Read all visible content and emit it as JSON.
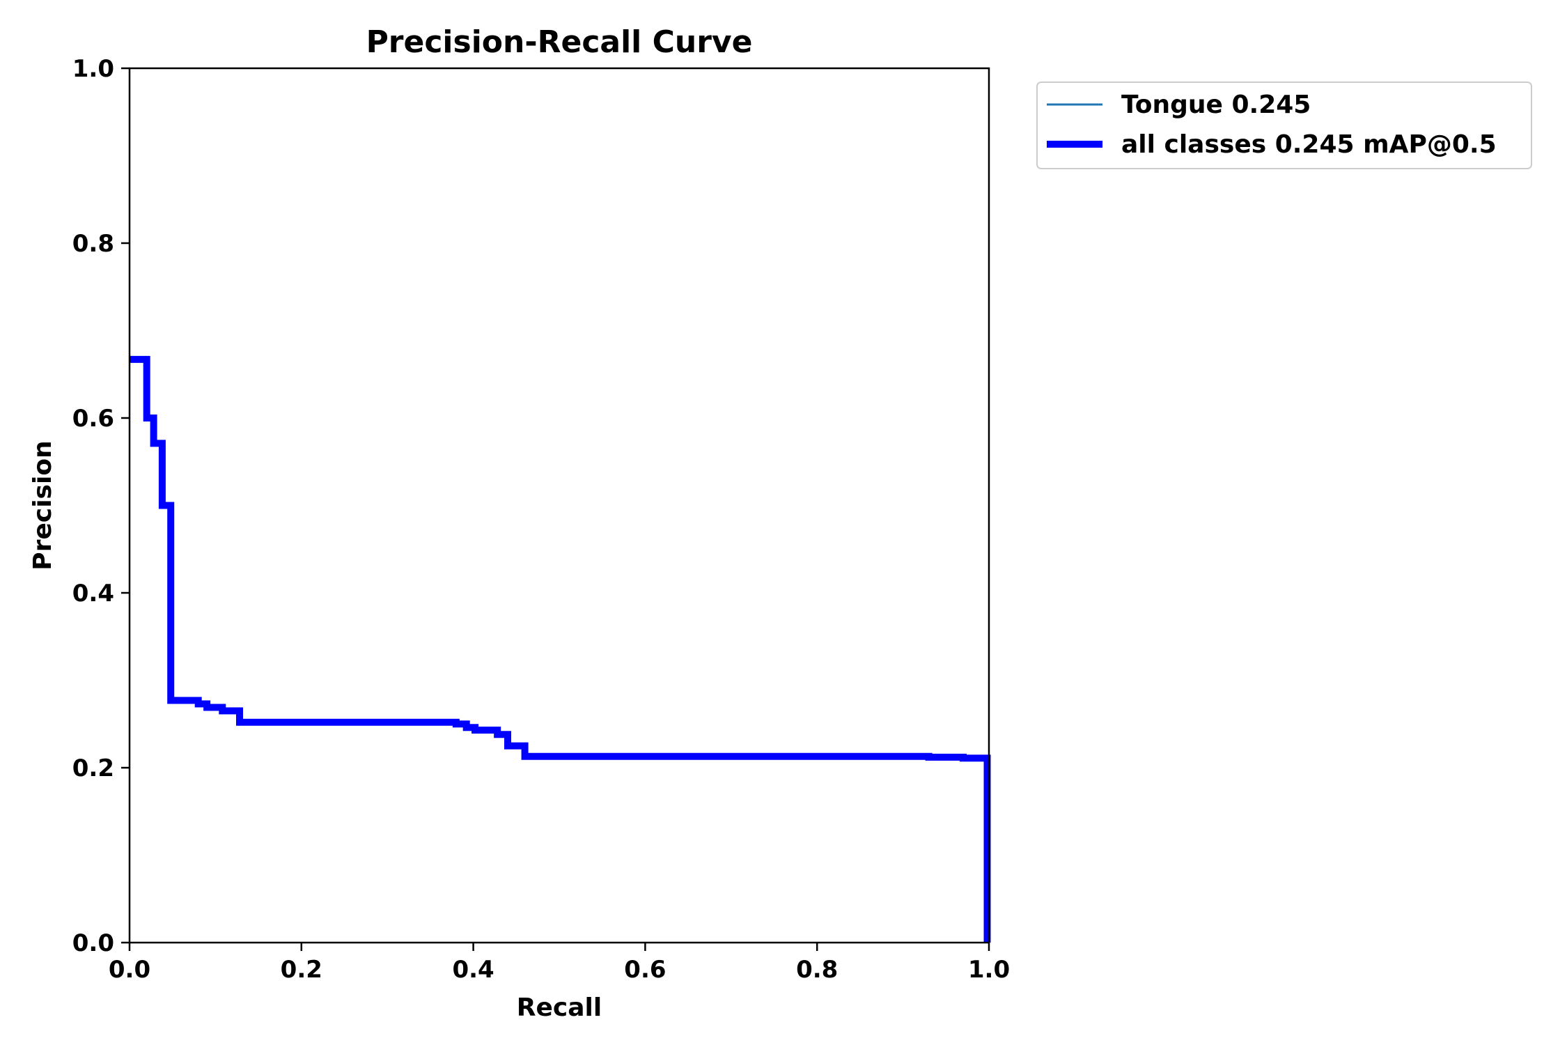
{
  "chart_data": {
    "type": "line",
    "title": "Precision-Recall Curve",
    "xlabel": "Recall",
    "ylabel": "Precision",
    "xlim": [
      0,
      1
    ],
    "ylim": [
      0,
      1
    ],
    "xticks": [
      0,
      0.2,
      0.4,
      0.6,
      0.8,
      1.0
    ],
    "yticks": [
      0,
      0.2,
      0.4,
      0.6,
      0.8,
      1.0
    ],
    "xtick_labels": [
      "0.0",
      "0.2",
      "0.4",
      "0.6",
      "0.8",
      "1.0"
    ],
    "ytick_labels": [
      "0.0",
      "0.2",
      "0.4",
      "0.6",
      "0.8",
      "1.0"
    ],
    "grid": false,
    "legend_position": "outside-top-right",
    "series": [
      {
        "name": "Tongue 0.245",
        "color": "#1f77b4",
        "line": "thin",
        "step": true,
        "x": [
          0.0,
          0.02,
          0.02,
          0.028,
          0.028,
          0.038,
          0.038,
          0.048,
          0.048,
          0.08,
          0.08,
          0.09,
          0.09,
          0.108,
          0.108,
          0.128,
          0.128,
          0.38,
          0.38,
          0.392,
          0.392,
          0.402,
          0.402,
          0.428,
          0.428,
          0.44,
          0.44,
          0.46,
          0.46,
          0.93,
          0.93,
          0.97,
          0.97,
          0.998,
          0.998
        ],
        "y": [
          0.667,
          0.667,
          0.6,
          0.6,
          0.571,
          0.571,
          0.5,
          0.5,
          0.277,
          0.277,
          0.273,
          0.273,
          0.269,
          0.269,
          0.265,
          0.265,
          0.252,
          0.252,
          0.25,
          0.25,
          0.246,
          0.246,
          0.243,
          0.243,
          0.238,
          0.238,
          0.225,
          0.225,
          0.213,
          0.213,
          0.212,
          0.212,
          0.211,
          0.211,
          0.0
        ]
      },
      {
        "name": "all classes 0.245 mAP@0.5",
        "color": "#0000ff",
        "line": "thick",
        "step": true,
        "x": [
          0.0,
          0.02,
          0.02,
          0.028,
          0.028,
          0.038,
          0.038,
          0.048,
          0.048,
          0.08,
          0.08,
          0.09,
          0.09,
          0.108,
          0.108,
          0.128,
          0.128,
          0.38,
          0.38,
          0.392,
          0.392,
          0.402,
          0.402,
          0.428,
          0.428,
          0.44,
          0.44,
          0.46,
          0.46,
          0.93,
          0.93,
          0.97,
          0.97,
          0.998,
          0.998
        ],
        "y": [
          0.667,
          0.667,
          0.6,
          0.6,
          0.571,
          0.571,
          0.5,
          0.5,
          0.277,
          0.277,
          0.273,
          0.273,
          0.269,
          0.269,
          0.265,
          0.265,
          0.252,
          0.252,
          0.25,
          0.25,
          0.246,
          0.246,
          0.243,
          0.243,
          0.238,
          0.238,
          0.225,
          0.225,
          0.213,
          0.213,
          0.212,
          0.212,
          0.211,
          0.211,
          0.0
        ]
      }
    ]
  }
}
